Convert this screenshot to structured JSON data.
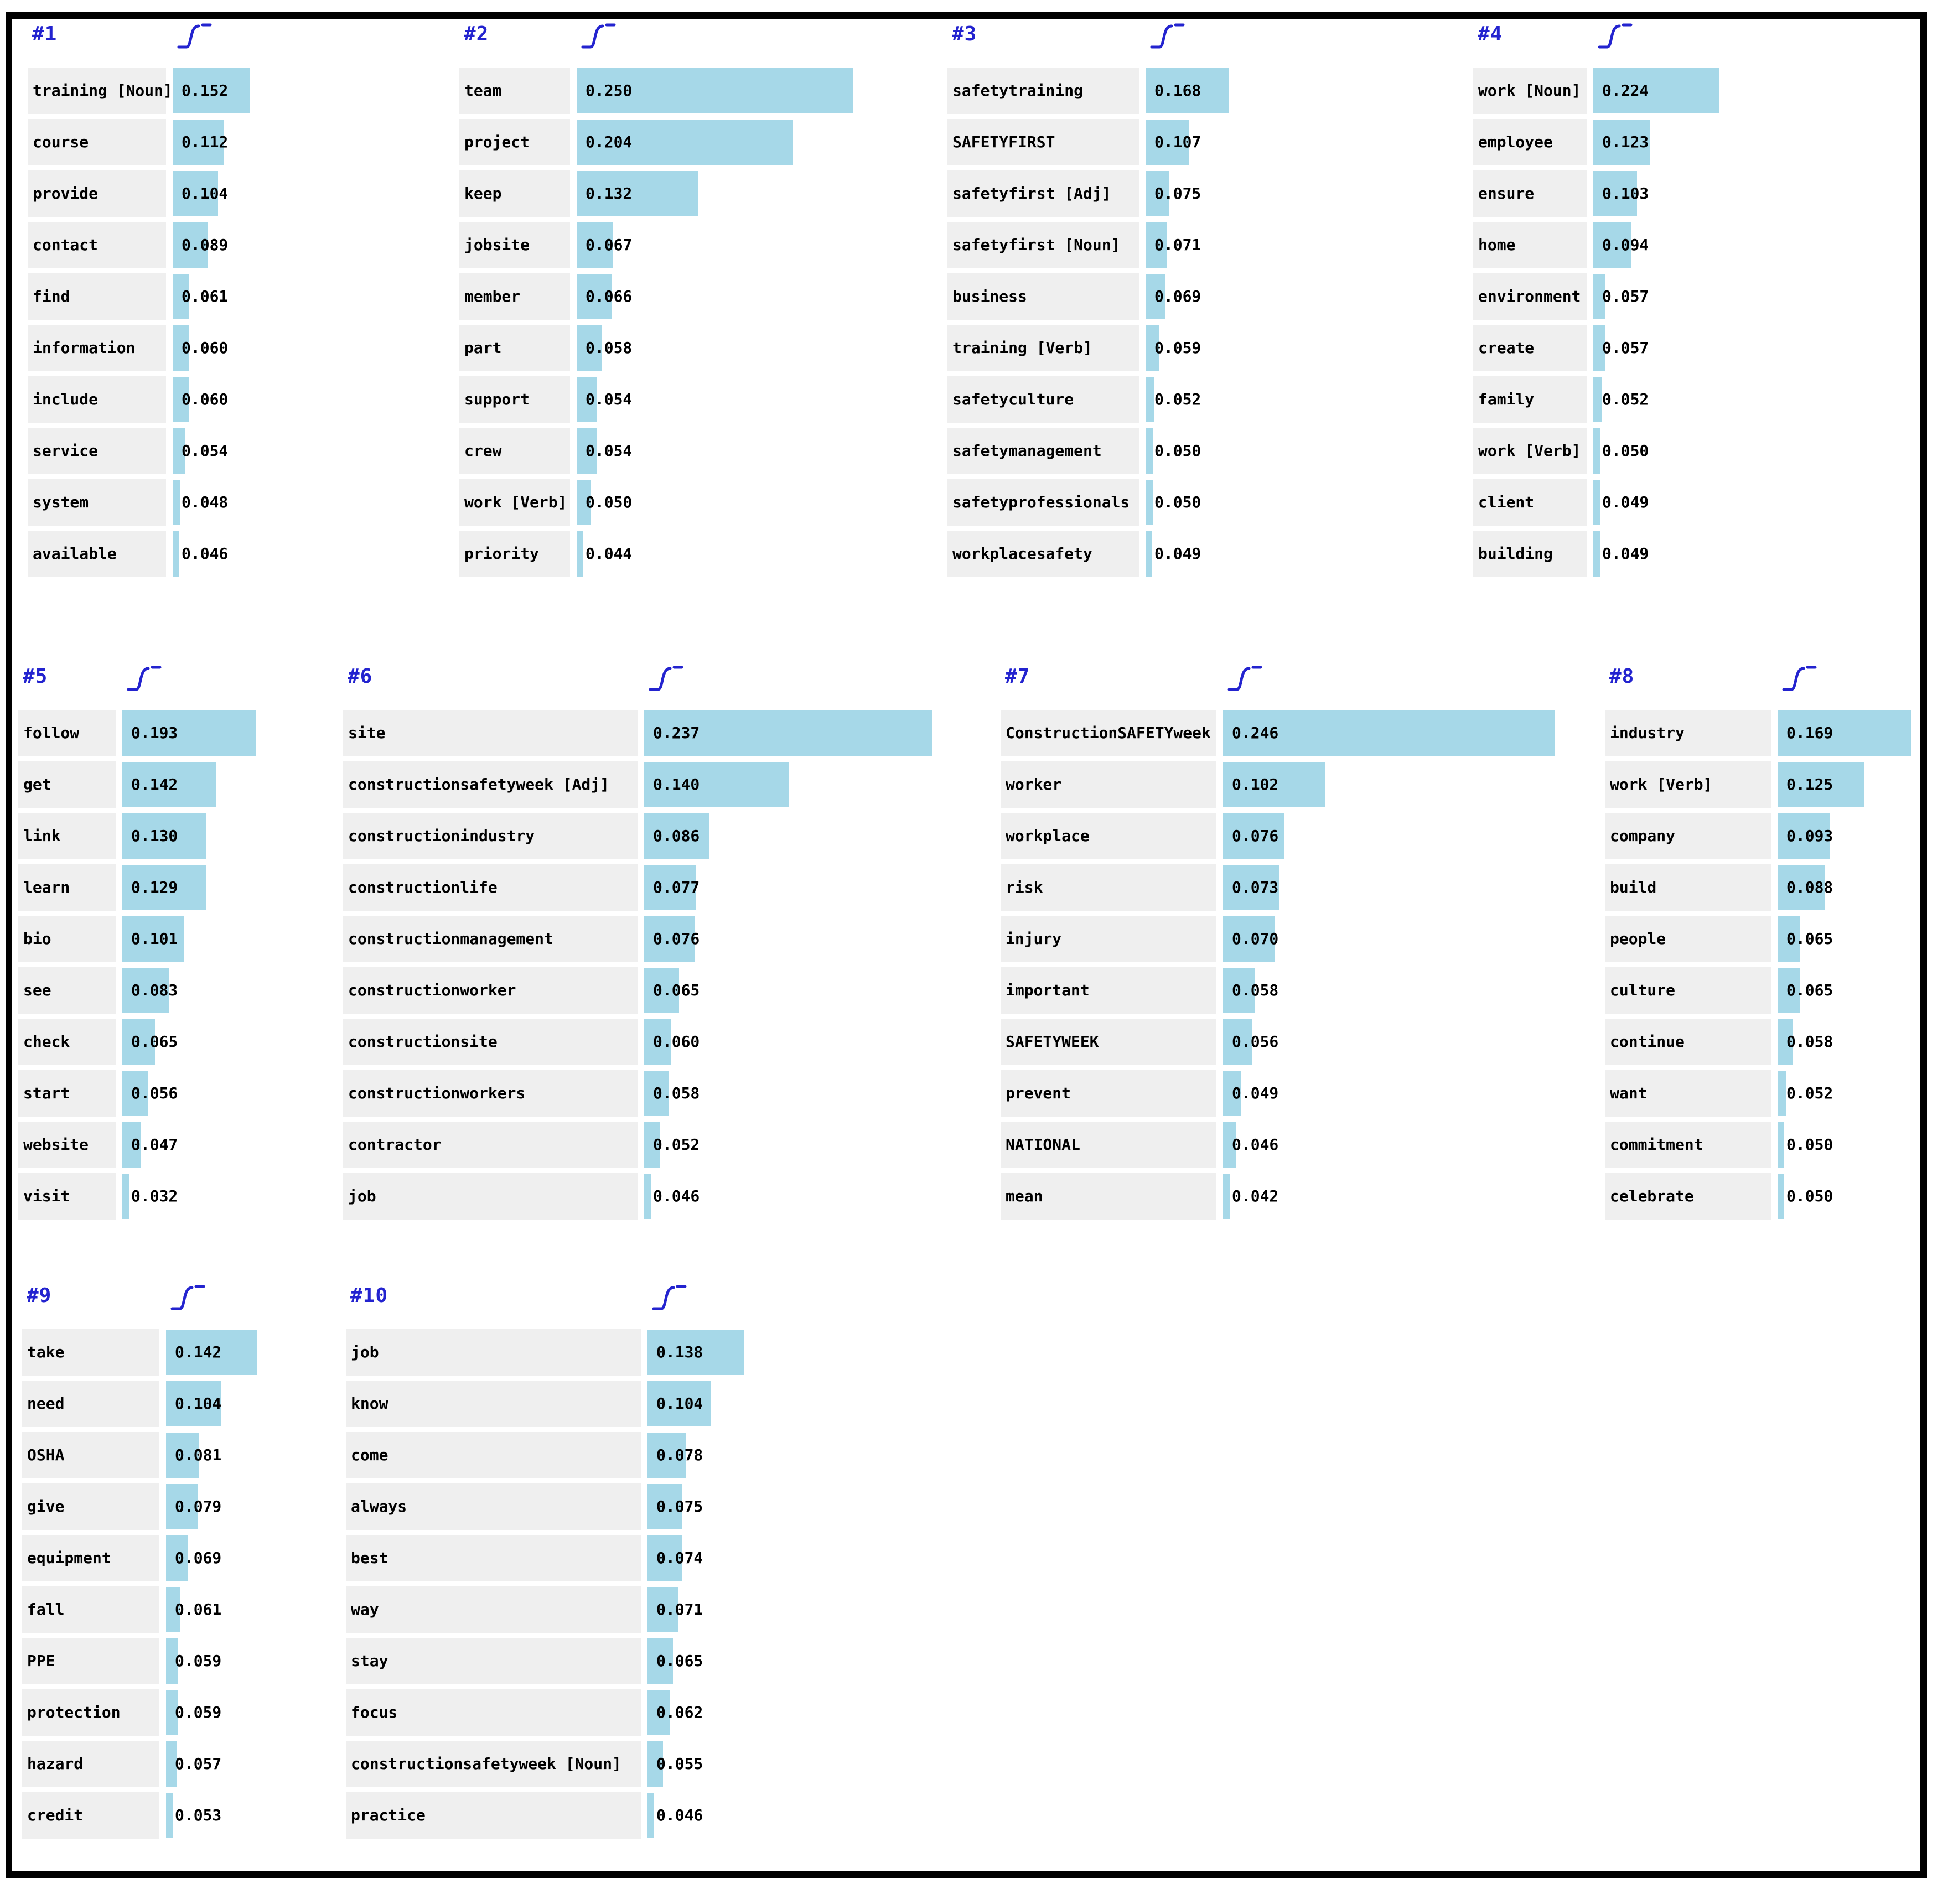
{
  "colors": {
    "bar_fill": "#a6d8e8",
    "keyword_box": "#efefef",
    "header_blue": "#2323cf",
    "text": "#000000",
    "frame_border": "#000000"
  },
  "icons": {
    "topic_header_icon": "sigmoid-curve-icon"
  },
  "chart_data": [
    {
      "type": "bar",
      "orientation": "horizontal",
      "title": "#1",
      "categories": [
        "training [Noun]",
        "course",
        "provide",
        "contact",
        "find",
        "information",
        "include",
        "service",
        "system",
        "available"
      ],
      "values": [
        0.152,
        0.112,
        0.104,
        0.089,
        0.061,
        0.06,
        0.06,
        0.054,
        0.048,
        0.046
      ],
      "value_labels": [
        "0.152",
        "0.112",
        "0.104",
        "0.089",
        "0.061",
        "0.060",
        "0.060",
        "0.054",
        "0.048",
        "0.046"
      ]
    },
    {
      "type": "bar",
      "orientation": "horizontal",
      "title": "#2",
      "categories": [
        "team",
        "project",
        "keep",
        "jobsite",
        "member",
        "part",
        "support",
        "crew",
        "work [Verb]",
        "priority"
      ],
      "values": [
        0.25,
        0.204,
        0.132,
        0.067,
        0.066,
        0.058,
        0.054,
        0.054,
        0.05,
        0.044
      ],
      "value_labels": [
        "0.250",
        "0.204",
        "0.132",
        "0.067",
        "0.066",
        "0.058",
        "0.054",
        "0.054",
        "0.050",
        "0.044"
      ]
    },
    {
      "type": "bar",
      "orientation": "horizontal",
      "title": "#3",
      "categories": [
        "safetytraining",
        "SAFETYFIRST",
        "safetyfirst [Adj]",
        "safetyfirst [Noun]",
        "business",
        "training [Verb]",
        "safetyculture",
        "safetymanagement",
        "safetyprofessionals",
        "workplacesafety"
      ],
      "values": [
        0.168,
        0.107,
        0.075,
        0.071,
        0.069,
        0.059,
        0.052,
        0.05,
        0.05,
        0.049
      ],
      "value_labels": [
        "0.168",
        "0.107",
        "0.075",
        "0.071",
        "0.069",
        "0.059",
        "0.052",
        "0.050",
        "0.050",
        "0.049"
      ]
    },
    {
      "type": "bar",
      "orientation": "horizontal",
      "title": "#4",
      "categories": [
        "work [Noun]",
        "employee",
        "ensure",
        "home",
        "environment",
        "create",
        "family",
        "work [Verb]",
        "client",
        "building"
      ],
      "values": [
        0.224,
        0.123,
        0.103,
        0.094,
        0.057,
        0.057,
        0.052,
        0.05,
        0.049,
        0.049
      ],
      "value_labels": [
        "0.224",
        "0.123",
        "0.103",
        "0.094",
        "0.057",
        "0.057",
        "0.052",
        "0.050",
        "0.049",
        "0.049"
      ]
    },
    {
      "type": "bar",
      "orientation": "horizontal",
      "title": "#5",
      "categories": [
        "follow",
        "get",
        "link",
        "learn",
        "bio",
        "see",
        "check",
        "start",
        "website",
        "visit"
      ],
      "values": [
        0.193,
        0.142,
        0.13,
        0.129,
        0.101,
        0.083,
        0.065,
        0.056,
        0.047,
        0.032
      ],
      "value_labels": [
        "0.193",
        "0.142",
        "0.130",
        "0.129",
        "0.101",
        "0.083",
        "0.065",
        "0.056",
        "0.047",
        "0.032"
      ]
    },
    {
      "type": "bar",
      "orientation": "horizontal",
      "title": "#6",
      "categories": [
        "site",
        "constructionsafetyweek [Adj]",
        "constructionindustry",
        "constructionlife",
        "constructionmanagement",
        "constructionworker",
        "constructionsite",
        "constructionworkers",
        "contractor",
        "job"
      ],
      "values": [
        0.237,
        0.14,
        0.086,
        0.077,
        0.076,
        0.065,
        0.06,
        0.058,
        0.052,
        0.046
      ],
      "value_labels": [
        "0.237",
        "0.140",
        "0.086",
        "0.077",
        "0.076",
        "0.065",
        "0.060",
        "0.058",
        "0.052",
        "0.046"
      ]
    },
    {
      "type": "bar",
      "orientation": "horizontal",
      "title": "#7",
      "categories": [
        "ConstructionSAFETYweek",
        "worker",
        "workplace",
        "risk",
        "injury",
        "important",
        "SAFETYWEEK",
        "prevent",
        "NATIONAL",
        "mean"
      ],
      "values": [
        0.246,
        0.102,
        0.076,
        0.073,
        0.07,
        0.058,
        0.056,
        0.049,
        0.046,
        0.042
      ],
      "value_labels": [
        "0.246",
        "0.102",
        "0.076",
        "0.073",
        "0.070",
        "0.058",
        "0.056",
        "0.049",
        "0.046",
        "0.042"
      ]
    },
    {
      "type": "bar",
      "orientation": "horizontal",
      "title": "#8",
      "categories": [
        "industry",
        "work [Verb]",
        "company",
        "build",
        "people",
        "culture",
        "continue",
        "want",
        "commitment",
        "celebrate"
      ],
      "values": [
        0.169,
        0.125,
        0.093,
        0.088,
        0.065,
        0.065,
        0.058,
        0.052,
        0.05,
        0.05
      ],
      "value_labels": [
        "0.169",
        "0.125",
        "0.093",
        "0.088",
        "0.065",
        "0.065",
        "0.058",
        "0.052",
        "0.050",
        "0.050"
      ]
    },
    {
      "type": "bar",
      "orientation": "horizontal",
      "title": "#9",
      "categories": [
        "take",
        "need",
        "OSHA",
        "give",
        "equipment",
        "fall",
        "PPE",
        "protection",
        "hazard",
        "credit"
      ],
      "values": [
        0.142,
        0.104,
        0.081,
        0.079,
        0.069,
        0.061,
        0.059,
        0.059,
        0.057,
        0.053
      ],
      "value_labels": [
        "0.142",
        "0.104",
        "0.081",
        "0.079",
        "0.069",
        "0.061",
        "0.059",
        "0.059",
        "0.057",
        "0.053"
      ]
    },
    {
      "type": "bar",
      "orientation": "horizontal",
      "title": "#10",
      "categories": [
        "job",
        "know",
        "come",
        "always",
        "best",
        "way",
        "stay",
        "focus",
        "constructionsafetyweek [Noun]",
        "practice"
      ],
      "values": [
        0.138,
        0.104,
        0.078,
        0.075,
        0.074,
        0.071,
        0.065,
        0.062,
        0.055,
        0.046
      ],
      "value_labels": [
        "0.138",
        "0.104",
        "0.078",
        "0.075",
        "0.074",
        "0.071",
        "0.065",
        "0.062",
        "0.055",
        "0.046"
      ]
    }
  ]
}
